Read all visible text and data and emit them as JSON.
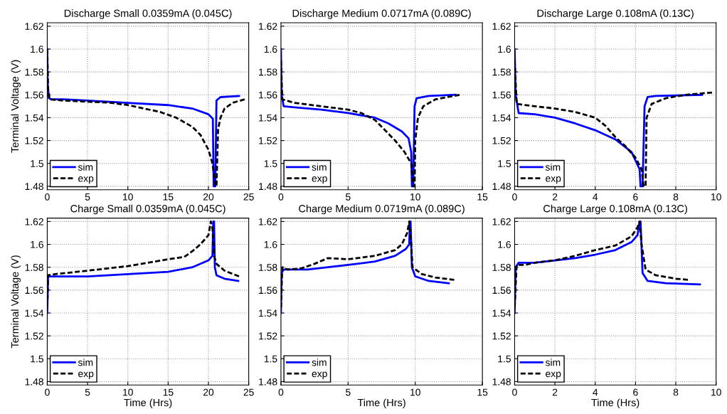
{
  "chart_data": [
    {
      "type": "line",
      "title": "Discharge Small 0.0359mA (0.045C)",
      "ylabel": "Terminal Voltage (V)",
      "xlim": [
        0,
        25
      ],
      "xticks": [
        0,
        5,
        10,
        15,
        20,
        25
      ],
      "ylim": [
        1.477,
        1.623
      ],
      "yticks": [
        1.48,
        1.5,
        1.52,
        1.54,
        1.56,
        1.58,
        1.6,
        1.62
      ],
      "grid": true,
      "legend": "bottom left",
      "series": [
        {
          "name": "sim",
          "color": "#0000ff",
          "line_style": "solid",
          "x": [
            0,
            0.05,
            0.2,
            0.5,
            2,
            5,
            10,
            15,
            18,
            20,
            20.55,
            20.65,
            20.85,
            21.0,
            21.5,
            23.8
          ],
          "values": [
            1.6,
            1.57,
            1.557,
            1.556,
            1.556,
            1.555,
            1.553,
            1.551,
            1.548,
            1.543,
            1.539,
            1.48,
            1.48,
            1.555,
            1.558,
            1.559
          ]
        },
        {
          "name": "exp",
          "color": "#000000",
          "line_style": "dashed",
          "x": [
            0,
            0.1,
            0.3,
            2,
            5,
            8,
            10,
            12,
            14,
            16,
            18,
            19,
            20,
            20.5,
            20.9,
            21.0,
            21.2,
            21.5,
            22,
            23,
            24.5
          ],
          "values": [
            1.6,
            1.565,
            1.556,
            1.555,
            1.554,
            1.553,
            1.551,
            1.548,
            1.545,
            1.54,
            1.532,
            1.525,
            1.512,
            1.5,
            1.48,
            1.48,
            1.53,
            1.54,
            1.548,
            1.553,
            1.556
          ]
        }
      ]
    },
    {
      "type": "line",
      "title": "Discharge Medium 0.0717mA (0.089C)",
      "xlim": [
        0,
        15
      ],
      "xticks": [
        0,
        5,
        10,
        15
      ],
      "ylim": [
        1.477,
        1.623
      ],
      "yticks": [
        1.48,
        1.5,
        1.52,
        1.54,
        1.56,
        1.58,
        1.6,
        1.62
      ],
      "grid": true,
      "legend": "bottom left",
      "series": [
        {
          "name": "sim",
          "color": "#0000ff",
          "line_style": "solid",
          "x": [
            0,
            0.05,
            0.2,
            1,
            3,
            5,
            7,
            8,
            9,
            9.5,
            9.7,
            9.75,
            9.85,
            9.95,
            10.1,
            11,
            13
          ],
          "values": [
            1.6,
            1.56,
            1.55,
            1.549,
            1.547,
            1.544,
            1.54,
            1.535,
            1.528,
            1.522,
            1.51,
            1.48,
            1.48,
            1.55,
            1.557,
            1.559,
            1.56
          ]
        },
        {
          "name": "exp",
          "color": "#000000",
          "line_style": "dashed",
          "x": [
            0,
            0.1,
            1,
            3,
            5,
            6,
            7,
            8,
            8.5,
            9.2,
            9.7,
            9.85,
            9.95,
            10.0,
            10.2,
            10.6,
            11.5,
            13.3
          ],
          "values": [
            1.59,
            1.556,
            1.553,
            1.55,
            1.547,
            1.544,
            1.538,
            1.526,
            1.52,
            1.51,
            1.5,
            1.48,
            1.48,
            1.52,
            1.54,
            1.55,
            1.556,
            1.56
          ]
        }
      ]
    },
    {
      "type": "line",
      "title": "Discharge Large 0.108mA (0.13C)",
      "xlim": [
        0,
        10
      ],
      "xticks": [
        0,
        2,
        4,
        6,
        8,
        10
      ],
      "ylim": [
        1.477,
        1.623
      ],
      "yticks": [
        1.48,
        1.5,
        1.52,
        1.54,
        1.56,
        1.58,
        1.6,
        1.62
      ],
      "grid": true,
      "legend": "bottom left",
      "series": [
        {
          "name": "sim",
          "color": "#0000ff",
          "line_style": "solid",
          "x": [
            0,
            0.05,
            0.2,
            1,
            2,
            3,
            4,
            5,
            5.8,
            6.2,
            6.25,
            6.35,
            6.45,
            6.6,
            7,
            9.3
          ],
          "values": [
            1.6,
            1.56,
            1.544,
            1.543,
            1.54,
            1.535,
            1.529,
            1.521,
            1.51,
            1.495,
            1.48,
            1.48,
            1.55,
            1.558,
            1.559,
            1.56
          ]
        },
        {
          "name": "exp",
          "color": "#000000",
          "line_style": "dashed",
          "x": [
            0,
            0.1,
            1,
            2,
            3,
            4,
            4.5,
            5,
            5.5,
            6,
            6.3,
            6.4,
            6.5,
            6.55,
            6.8,
            7.5,
            8.5,
            9.8
          ],
          "values": [
            1.59,
            1.552,
            1.55,
            1.548,
            1.545,
            1.54,
            1.533,
            1.523,
            1.515,
            1.505,
            1.495,
            1.48,
            1.48,
            1.54,
            1.552,
            1.557,
            1.56,
            1.562
          ]
        }
      ]
    },
    {
      "type": "line",
      "title": "Charge Small 0.0359mA (0.045C)",
      "xlabel": "Time (Hrs)",
      "ylabel": "Terminal Voltage (V)",
      "xlim": [
        0,
        25
      ],
      "xticks": [
        0,
        5,
        10,
        15,
        20,
        25
      ],
      "ylim": [
        1.477,
        1.623
      ],
      "yticks": [
        1.48,
        1.5,
        1.52,
        1.54,
        1.56,
        1.58,
        1.6,
        1.62
      ],
      "grid": true,
      "legend": "bottom left",
      "series": [
        {
          "name": "sim",
          "color": "#0000ff",
          "line_style": "solid",
          "x": [
            0,
            0.1,
            2,
            5,
            10,
            15,
            18,
            20,
            20.5,
            20.6,
            20.7,
            20.8,
            21,
            22,
            23.7
          ],
          "values": [
            1.54,
            1.572,
            1.572,
            1.572,
            1.574,
            1.576,
            1.58,
            1.586,
            1.59,
            1.62,
            1.62,
            1.58,
            1.573,
            1.57,
            1.568
          ]
        },
        {
          "name": "exp",
          "color": "#000000",
          "line_style": "dashed",
          "x": [
            0,
            0.1,
            1,
            5,
            10,
            15,
            17,
            18,
            19,
            20,
            20.3,
            20.5,
            20.7,
            21,
            22,
            23.8
          ],
          "values": [
            1.545,
            1.573,
            1.574,
            1.577,
            1.581,
            1.587,
            1.589,
            1.594,
            1.6,
            1.608,
            1.62,
            1.614,
            1.59,
            1.583,
            1.577,
            1.572
          ]
        }
      ]
    },
    {
      "type": "line",
      "title": "Charge Medium 0.0719mA (0.089C)",
      "xlabel": "Time (Hrs)",
      "xlim": [
        0,
        15
      ],
      "xticks": [
        0,
        5,
        10,
        15
      ],
      "ylim": [
        1.477,
        1.623
      ],
      "yticks": [
        1.48,
        1.5,
        1.52,
        1.54,
        1.56,
        1.58,
        1.6,
        1.62
      ],
      "grid": true,
      "legend": "bottom left",
      "series": [
        {
          "name": "sim",
          "color": "#0000ff",
          "line_style": "solid",
          "x": [
            0,
            0.05,
            0.2,
            2,
            5,
            7,
            8.5,
            9.3,
            9.55,
            9.6,
            9.65,
            9.75,
            10,
            11,
            12.5
          ],
          "values": [
            1.54,
            1.575,
            1.578,
            1.578,
            1.582,
            1.585,
            1.59,
            1.596,
            1.6,
            1.62,
            1.62,
            1.58,
            1.572,
            1.568,
            1.566
          ]
        },
        {
          "name": "exp",
          "color": "#000000",
          "line_style": "dashed",
          "x": [
            0,
            0.1,
            0.5,
            1.5,
            2.5,
            3.5,
            5,
            7,
            8.5,
            9,
            9.4,
            9.55,
            9.7,
            9.8,
            10.5,
            11.5,
            12.9
          ],
          "values": [
            1.545,
            1.58,
            1.578,
            1.579,
            1.583,
            1.588,
            1.587,
            1.59,
            1.595,
            1.6,
            1.61,
            1.62,
            1.6,
            1.58,
            1.574,
            1.571,
            1.569
          ]
        }
      ]
    },
    {
      "type": "line",
      "title": "Charge Large 0.108mA (0.13C)",
      "xlabel": "Time (Hrs)",
      "xlim": [
        0,
        10
      ],
      "xticks": [
        0,
        2,
        4,
        6,
        8,
        10
      ],
      "ylim": [
        1.477,
        1.623
      ],
      "yticks": [
        1.48,
        1.5,
        1.52,
        1.54,
        1.56,
        1.58,
        1.6,
        1.62
      ],
      "grid": true,
      "legend": "bottom left",
      "series": [
        {
          "name": "sim",
          "color": "#0000ff",
          "line_style": "solid",
          "x": [
            0,
            0.05,
            0.2,
            1,
            2,
            3,
            4,
            5,
            5.8,
            6.1,
            6.2,
            6.25,
            6.35,
            6.6,
            7.5,
            9.2
          ],
          "values": [
            1.54,
            1.58,
            1.584,
            1.584,
            1.586,
            1.588,
            1.591,
            1.595,
            1.602,
            1.608,
            1.62,
            1.62,
            1.575,
            1.568,
            1.566,
            1.565
          ]
        },
        {
          "name": "exp",
          "color": "#000000",
          "line_style": "dashed",
          "x": [
            0,
            0.1,
            0.5,
            1,
            2,
            3,
            4,
            5,
            5.8,
            6.1,
            6.2,
            6.3,
            6.5,
            7,
            8,
            8.6
          ],
          "values": [
            1.545,
            1.582,
            1.582,
            1.584,
            1.586,
            1.59,
            1.595,
            1.599,
            1.607,
            1.615,
            1.62,
            1.6,
            1.578,
            1.573,
            1.57,
            1.569
          ]
        }
      ]
    }
  ]
}
